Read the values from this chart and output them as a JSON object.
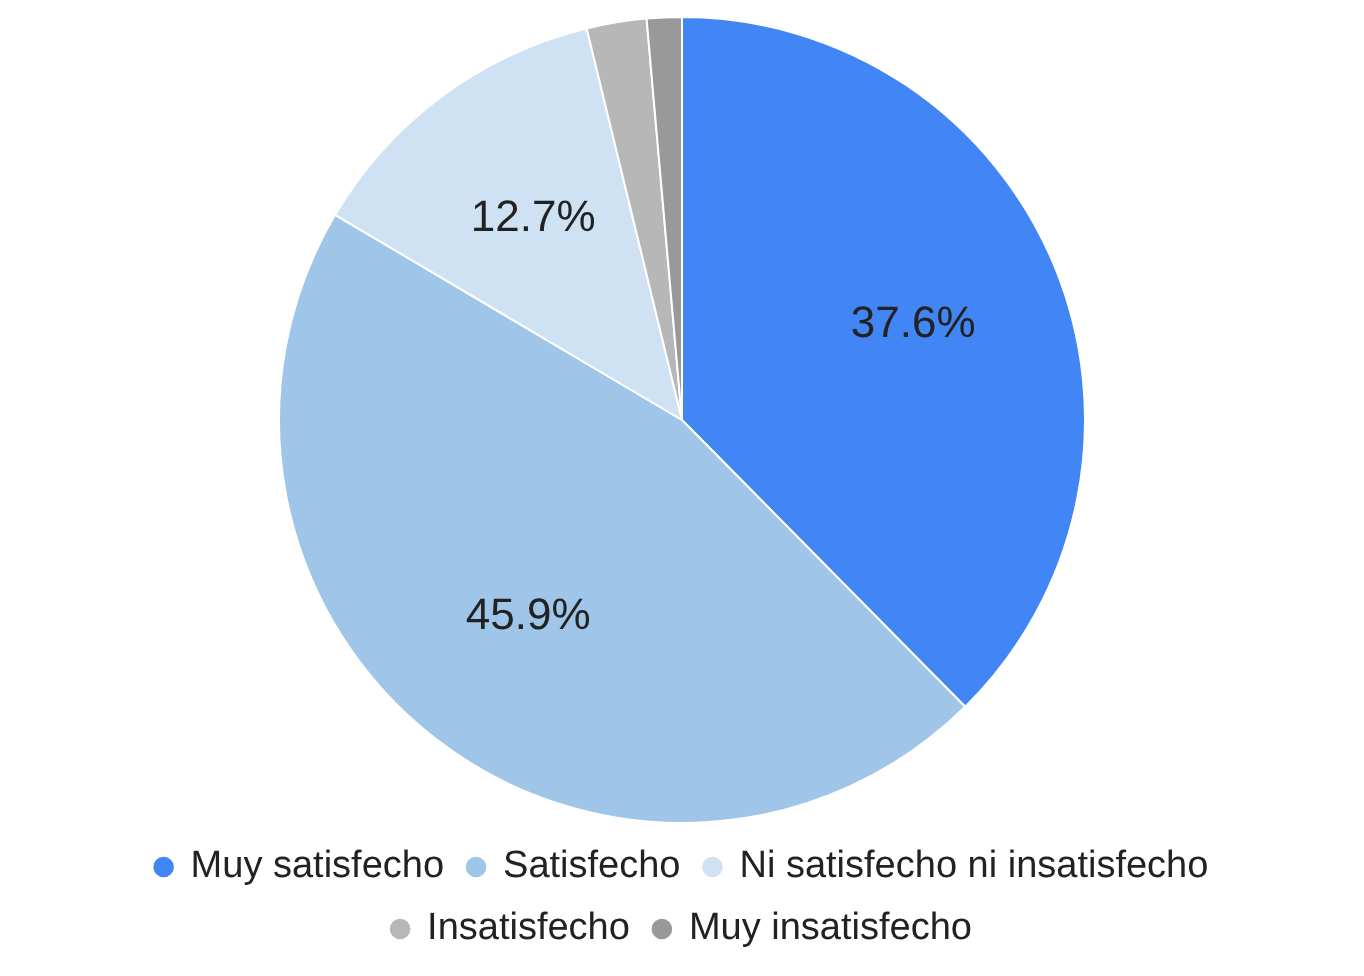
{
  "chart_data": {
    "type": "pie",
    "categories": [
      "Muy satisfecho",
      "Satisfecho",
      "Ni satisfecho ni insatisfecho",
      "Insatisfecho",
      "Muy insatisfecho"
    ],
    "values": [
      37.6,
      45.9,
      12.7,
      2.4,
      1.4
    ],
    "value_labels": [
      "37.6%",
      "45.9%",
      "12.7%",
      null,
      null
    ],
    "colors": [
      "#4285f4",
      "#9fc5e8",
      "#cfe2f3",
      "#b7b7b7",
      "#999999"
    ],
    "legend": "bottom"
  }
}
